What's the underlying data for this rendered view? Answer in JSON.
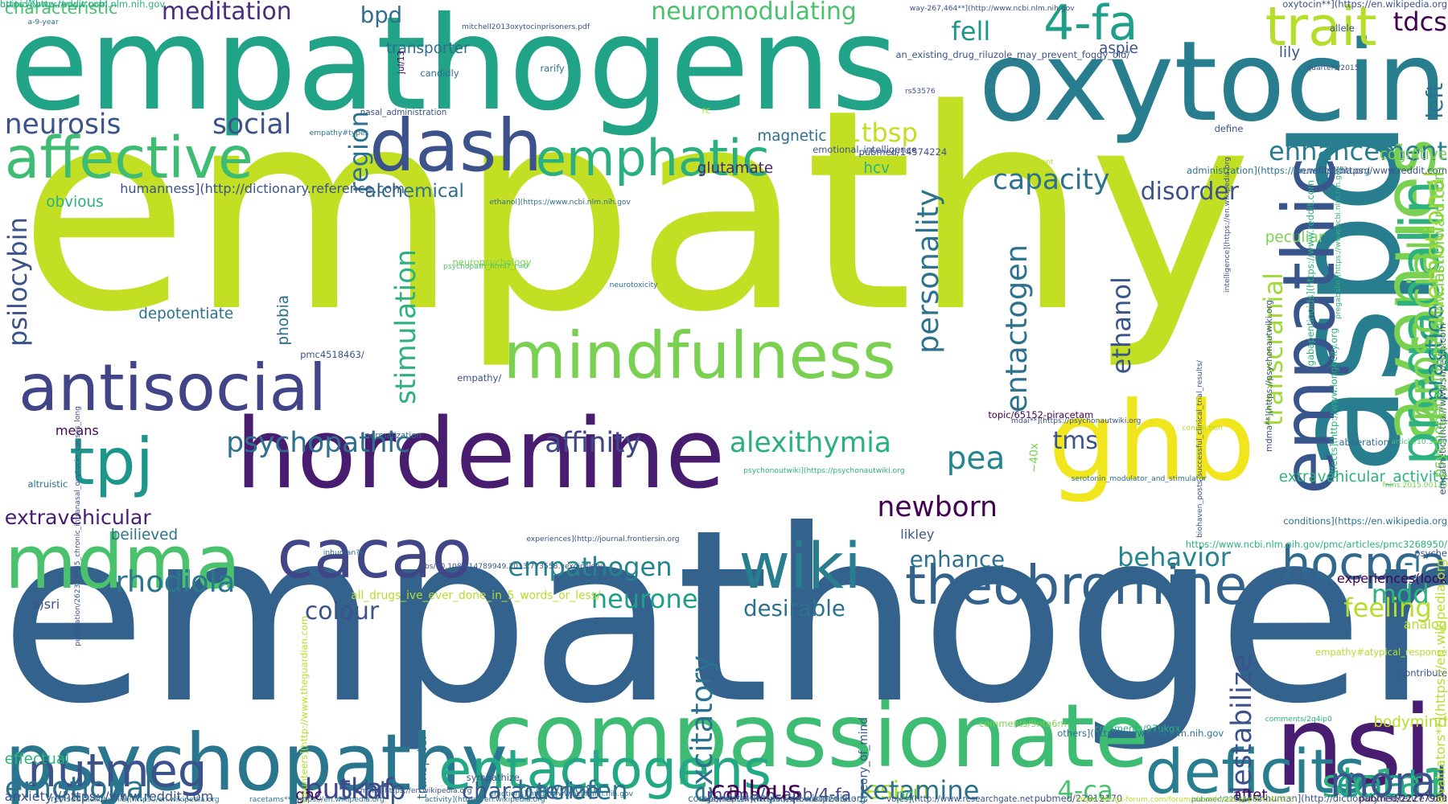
{
  "words": [
    {
      "text": "empathy",
      "color": "#c2df23"
    },
    {
      "text": "empathogenic",
      "color": "#33638d"
    },
    {
      "text": "empathogens",
      "color": "#20a386"
    },
    {
      "text": "oxytocin",
      "color": "#287d8e"
    },
    {
      "text": "aspd",
      "color": "#287d8e"
    },
    {
      "text": "hordenine",
      "color": "#481d6f"
    },
    {
      "text": "ghb",
      "color": "#f1e51d"
    },
    {
      "text": "nsi",
      "color": "#481d6f"
    },
    {
      "text": "compassionate",
      "color": "#3fbc73"
    },
    {
      "text": "psychopathy",
      "color": "#2a768e"
    },
    {
      "text": "mindfulness",
      "color": "#7ad151"
    },
    {
      "text": "empathic",
      "color": "#39568c"
    },
    {
      "text": "avenues",
      "color": "#7ad151"
    },
    {
      "text": "mdma",
      "color": "#4ac16d"
    },
    {
      "text": "cacao",
      "color": "#404688"
    },
    {
      "text": "antisocial",
      "color": "#414487"
    },
    {
      "text": "tpj",
      "color": "#1f968b"
    },
    {
      "text": "dash",
      "color": "#3b528b"
    },
    {
      "text": "affective",
      "color": "#3fbc73"
    },
    {
      "text": "theobromine",
      "color": "#33638d"
    },
    {
      "text": "wiki",
      "color": "#287d8e"
    },
    {
      "text": "entactogens",
      "color": "#22a884"
    },
    {
      "text": "deficits",
      "color": "#287d8e"
    },
    {
      "text": "nutmeg",
      "color": "#3b528b"
    },
    {
      "text": "emphatic",
      "color": "#2ab07f"
    },
    {
      "text": "pregabalin",
      "color": "#2db27d"
    },
    {
      "text": "trait",
      "color": "#b5de2b"
    },
    {
      "text": "4-fa",
      "color": "#1f9e89"
    },
    {
      "text": "hocpca",
      "color": "#31688e"
    },
    {
      "text": "prosocial",
      "color": "#7ad151"
    },
    {
      "text": "eaat3",
      "color": "#1f9e89"
    },
    {
      "text": "slc1a1",
      "color": "#2db27d"
    },
    {
      "text": "moral",
      "color": "#39568c"
    },
    {
      "text": "emotional",
      "color": "#2c728e"
    },
    {
      "text": "rhodiola",
      "color": "#2a788e"
    },
    {
      "text": "psychopathic",
      "color": "#2e6e8e"
    },
    {
      "text": "meditation",
      "color": "#472f7d"
    },
    {
      "text": "neurosis",
      "color": "#3b528b"
    },
    {
      "text": "social",
      "color": "#3b528b"
    },
    {
      "text": "capacity",
      "color": "#2c728e"
    },
    {
      "text": "enhancement",
      "color": "#287d8e"
    },
    {
      "text": "personality",
      "color": "#2c728e"
    },
    {
      "text": "entactogen",
      "color": "#2c728e"
    },
    {
      "text": "stimulation",
      "color": "#2db27d"
    },
    {
      "text": "psilocybin",
      "color": "#3b528b"
    },
    {
      "text": "region",
      "color": "#2c728e"
    },
    {
      "text": "1tbsp",
      "color": "#c2df23"
    },
    {
      "text": "fell",
      "color": "#1f968b"
    },
    {
      "text": "tdcs",
      "color": "#440154"
    },
    {
      "text": "left",
      "color": "#2c728e"
    },
    {
      "text": "unemotional",
      "color": "#9fda3a"
    },
    {
      "text": "practice",
      "color": "#25848e"
    },
    {
      "text": "transcranial",
      "color": "#9fda3a"
    },
    {
      "text": "ethanol",
      "color": "#39568c"
    },
    {
      "text": "pea",
      "color": "#25848e"
    },
    {
      "text": "tms",
      "color": "#3b528b"
    },
    {
      "text": "affinity",
      "color": "#404688"
    },
    {
      "text": "alexithymia",
      "color": "#2ab07f"
    },
    {
      "text": "newborn",
      "color": "#440154"
    },
    {
      "text": "extravehicular",
      "color": "#481d6f"
    },
    {
      "text": "mdd",
      "color": "#2db27d"
    },
    {
      "text": "behavior",
      "color": "#25848e"
    },
    {
      "text": "enhance",
      "color": "#2c728e"
    },
    {
      "text": "empathogen",
      "color": "#25848e"
    },
    {
      "text": "neurone",
      "color": "#1f9e89"
    },
    {
      "text": "colour",
      "color": "#3b528b"
    },
    {
      "text": "desirable",
      "color": "#2c728e"
    },
    {
      "text": "excitatory",
      "color": "#2c728e"
    },
    {
      "text": "feeling",
      "color": "#b5de2b"
    },
    {
      "text": "-i",
      "color": "#2c728e"
    },
    {
      "text": "disorder",
      "color": "#3b528b"
    },
    {
      "text": "alchemical",
      "color": "#2e6e8e"
    },
    {
      "text": "5-htp",
      "color": "#39568c"
    },
    {
      "text": "characterize",
      "color": "#39568c"
    },
    {
      "text": "lesion",
      "color": "#b5de2b"
    },
    {
      "text": "mdma/6-apb/4-fa",
      "color": "#433e85"
    },
    {
      "text": "butkaf",
      "color": "#404688"
    },
    {
      "text": "baclofen",
      "color": "#2c728e"
    },
    {
      "text": "callous",
      "color": "#440154"
    },
    {
      "text": "ketamine",
      "color": "#2c728e"
    },
    {
      "text": "4-ca",
      "color": "#4ac16d"
    },
    {
      "text": "destabilize",
      "color": "#3b528b"
    },
    {
      "text": "pcl",
      "color": "#4ac16d"
    },
    {
      "text": "ghc",
      "color": "#440154"
    },
    {
      "text": "magnetic",
      "color": "#2e6e8e"
    },
    {
      "text": "glutamate",
      "color": "#482878"
    },
    {
      "text": "hcv",
      "color": "#2ab07f"
    },
    {
      "text": "bpd",
      "color": "#2e6e8e"
    },
    {
      "text": "neuromodulating",
      "color": "#4ac16d"
    },
    {
      "text": "characteristic",
      "color": "#4ac16d"
    },
    {
      "text": "transporter",
      "color": "#2e6e8e"
    },
    {
      "text": "aspie",
      "color": "#3b528b"
    },
    {
      "text": "lily",
      "color": "#39568c"
    },
    {
      "text": "extravehicular_activity",
      "color": "#2db27d"
    },
    {
      "text": "depotentiate",
      "color": "#2c728e"
    },
    {
      "text": "phobia",
      "color": "#2e6e8e"
    },
    {
      "text": "cognitive",
      "color": "#7ad151"
    },
    {
      "text": "peculiar",
      "color": "#7ad151"
    },
    {
      "text": "likley",
      "color": "#39568c"
    },
    {
      "text": "experiences(look",
      "color": "#440154"
    },
    {
      "text": "analog",
      "color": "#b5de2b"
    },
    {
      "text": "bodymind",
      "color": "#b5de2b"
    },
    {
      "text": "aftet",
      "color": "#440154"
    },
    {
      "text": "beilieved",
      "color": "#2c728e"
    },
    {
      "text": "obvious",
      "color": "#2ab07f"
    },
    {
      "text": "effectual",
      "color": "#2db27d"
    },
    {
      "text": "s)sri",
      "color": "#3b528b"
    },
    {
      "text": "transprter",
      "color": "#2e6e8e"
    },
    {
      "text": "amyotrophic",
      "color": "#2c728e"
    },
    {
      "text": "theory_of_mind",
      "color": "#39568c"
    },
    {
      "text": "neuropsychology",
      "color": "#7ad151"
    },
    {
      "text": "sympathize",
      "color": "#3b528b"
    },
    {
      "text": "means",
      "color": "#440154"
    },
    {
      "text": "~40x",
      "color": "#7ad151"
    },
    {
      "text": "candidly",
      "color": "#2e6e8e"
    },
    {
      "text": "rarify",
      "color": "#2e6e8e"
    },
    {
      "text": "define",
      "color": "#3b528b"
    },
    {
      "text": "allele",
      "color": "#3b528b"
    },
    {
      "text": "contribute",
      "color": "#3b528b"
    },
    {
      "text": "psyche",
      "color": "#3b528b"
    },
    {
      "text": "normalization",
      "color": "#2c728e"
    },
    {
      "text": "revised",
      "color": "#2c728e"
    },
    {
      "text": "altruistic",
      "color": "#2c728e"
    },
    {
      "text": "inhuman?s",
      "color": "#2e6e8e"
    },
    {
      "text": "abberations",
      "color": "#2e6e8e"
    },
    {
      "text": "neurotoxicity",
      "color": "#2e6e8e"
    },
    {
      "text": "neurodevelopment",
      "color": "#b5de2b"
    },
    {
      "text": "connection",
      "color": "#b5de2b"
    },
    {
      "text": "rc",
      "color": "#b5de2b"
    },
    {
      "text": "emotional_intelligence",
      "color": "#3b528b"
    },
    {
      "text": "nasal_administration",
      "color": "#3b528b"
    },
    {
      "text": "an_existing_drug_riluzole_may_prevent_foggy_old/",
      "color": "#3b528b"
    },
    {
      "text": "all_drugs_ive_ever_done_in_5_words_or_less/",
      "color": "#b5de2b"
    },
    {
      "text": "biohaven_posts_successful_clinical_trial_results/",
      "color": "#3b528b"
    },
    {
      "text": "serotonin_modulator_and_stimulator",
      "color": "#2e6e8e"
    },
    {
      "text": "empathy#atypical_response",
      "color": "#b5de2b"
    },
    {
      "text": "empathy#types",
      "color": "#2c728e"
    },
    {
      "text": "empathy/",
      "color": "#3b528b"
    },
    {
      "text": "topic/65152-piracetam",
      "color": "#440154"
    },
    {
      "text": "comments/97ukgx",
      "color": "#2ab07f"
    },
    {
      "text": "comments/9nta6m",
      "color": "#7ad151"
    },
    {
      "text": "comments/2q4ip0",
      "color": "#2ab07f"
    },
    {
      "text": "psychopath_html?_r=0",
      "color": "#4ac16d"
    },
    {
      "text": "pubmed/14574224",
      "color": "#3b528b"
    },
    {
      "text": "pubmed/22277989",
      "color": "#440154"
    },
    {
      "text": "pubmed/22511482",
      "color": "#2c728e"
    },
    {
      "text": "pubmed/22012170",
      "color": "#3b528b"
    },
    {
      "text": "pmc4518463/",
      "color": "#3b528b"
    },
    {
      "text": "rs53576",
      "color": "#3b528b"
    },
    {
      "text": "jul/13",
      "color": "#440154"
    },
    {
      "text": "quarters/2015",
      "color": "#3b528b"
    },
    {
      "text": "article/10.3389",
      "color": "#4ac16d"
    },
    {
      "text": "fnins.2015.00128",
      "color": "#7ad151"
    },
    {
      "text": "a-9-year",
      "color": "#2c728e"
    },
    {
      "text": "mitchell2013oxytocinprisoners.pdf",
      "color": "#3b528b"
    },
    {
      "text": "way-267,464**](http://www.ncbi.nlm.nih.gov",
      "color": "#3b528b"
    },
    {
      "text": "oxytocin**](https://en.wikipedia.org",
      "color": "#3b528b"
    },
    {
      "text": "inhuman](http://dictionary.reference.com",
      "color": "#3b528b"
    },
    {
      "text": "humanness](http://dictionary.reference.com",
      "color": "#3b528b"
    },
    {
      "text": "ethanol](https://www.ncbi.nlm.nih.gov",
      "color": "#2e6e8e"
    },
    {
      "text": "administration](https://en.wikipedia.org",
      "color": "#2c728e"
    },
    {
      "text": "benefits](https://www.reddit.com",
      "color": "#3b528b"
    },
    {
      "text": "mdma**](https://psychonautwiki.org",
      "color": "#3b528b"
    },
    {
      "text": "mdai**](https://psychonautwiki.org",
      "color": "#3b528b"
    },
    {
      "text": "psychonoutwiki](https://psychonautwiki.org",
      "color": "#2ab07f"
    },
    {
      "text": "experiences](http://journal.frontiersin.org",
      "color": "#3b528b"
    },
    {
      "text": "abs/10.1080/14789949.2013.773558.vexqic4lehu",
      "color": "#3b528b"
    },
    {
      "text": "conditions](https://en.wikipedia.org",
      "color": "#2c728e"
    },
    {
      "text": "effects](http://www.longecity.org",
      "color": "#2ab07f"
    },
    {
      "text": "https://www.ncbi.nlm.nih.gov/pmc/articles/pmc3268950/",
      "color": "#2ab07f"
    },
    {
      "text": "volunteers](http://www.theguardian.com",
      "color": "#b5de2b"
    },
    {
      "text": "mind](https://en.wikipedia.org",
      "color": "#3b528b"
    },
    {
      "text": "emotions](http://www.ncbi.nlm.nih.gov",
      "color": "#2e6e8e"
    },
    {
      "text": "age](http://www.nytimes.com/2012/05/13",
      "color": "#3b528b"
    },
    {
      "text": "others](http://www.ncbi.nlm.nih.gov",
      "color": "#2c728e"
    },
    {
      "text": "https://drugs-forum.com/forum/showthread.php?t=142073",
      "color": "#b5de2b"
    },
    {
      "text": "anxiety](https://www.reddit.com",
      "color": "#3b528b"
    },
    {
      "text": "racetams**](https://en.wikipedia.org",
      "color": "#2c728e"
    },
    {
      "text": "activity](https://en.wikipedia.org",
      "color": "#2e6e8e"
    },
    {
      "text": "components*](https://en.wikipedia.org",
      "color": "#2c728e"
    },
    {
      "text": "voles](http://www.researchgate.net",
      "color": "#3b528b"
    },
    {
      "text": "alexithymia](https://en.wikipedia.org",
      "color": "#2c728e"
    },
    {
      "text": "evaluators**](https://en.wikipedia.org",
      "color": "#b5de2b"
    },
    {
      "text": "empathetic](http://www.snpedia.com",
      "color": "#3b528b"
    },
    {
      "text": "gabapentinoids](https://www.reddit.com",
      "color": "#2ab07f"
    },
    {
      "text": "pregabalin](https://www.ncbi.nlm.nih.gov",
      "color": "#2db27d"
    },
    {
      "text": "intelligence](https://en.wikipedia.org",
      "color": "#3b528b"
    },
    {
      "text": "publication/262339785_chronic_intranasal_oxytocin_causes_long",
      "color": "#3b528b"
    },
    {
      "text": "psychopathy](http://www.fastforward.com",
      "color": "#7ad151"
    },
    {
      "text": "opioid](http://www.ncbi.nlm.nih.gov",
      "color": "#2ab07f"
    },
    {
      "text": "https://www.reddit.com",
      "color": "#2ab07f"
    }
  ]
}
